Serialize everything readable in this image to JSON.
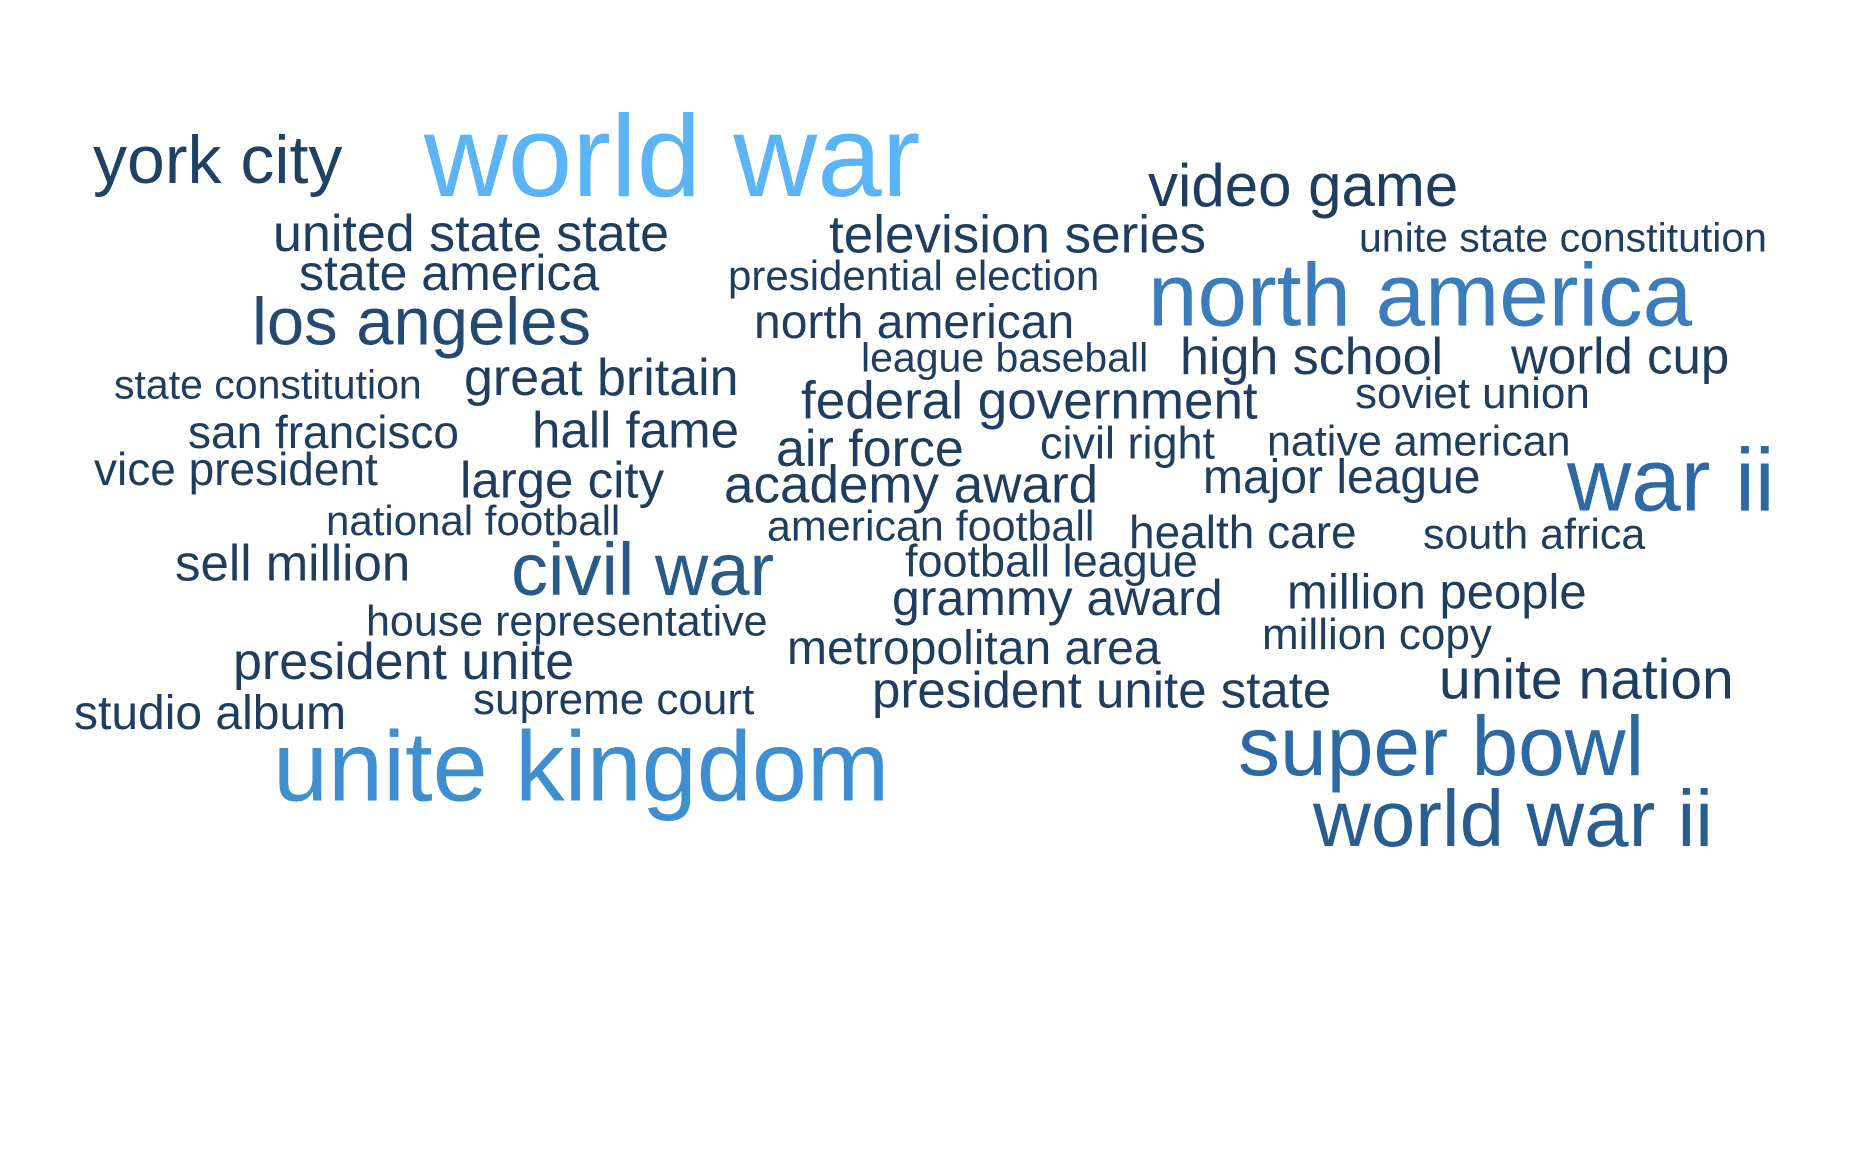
{
  "chart_data": {
    "type": "wordcloud",
    "words": [
      {
        "text": "world war",
        "weight": 100,
        "color": "#5ab4f5"
      },
      {
        "text": "unite kingdom",
        "weight": 85,
        "color": "#3f8fd0"
      },
      {
        "text": "north america",
        "weight": 77,
        "color": "#3a7dba"
      },
      {
        "text": "war ii",
        "weight": 77,
        "color": "#2d6aa3"
      },
      {
        "text": "super bowl",
        "weight": 72,
        "color": "#2d6aa3"
      },
      {
        "text": "world war ii",
        "weight": 69,
        "color": "#285d8f"
      },
      {
        "text": "civil war",
        "weight": 64,
        "color": "#285a8a"
      },
      {
        "text": "york city",
        "weight": 59,
        "color": "#1f4166"
      },
      {
        "text": "los angeles",
        "weight": 58,
        "color": "#234a73"
      },
      {
        "text": "video game",
        "weight": 52,
        "color": "#1e3d5f"
      },
      {
        "text": "unite nation",
        "weight": 49,
        "color": "#1e3d5f"
      },
      {
        "text": "television series",
        "weight": 46,
        "color": "#1e3d5f"
      },
      {
        "text": "federal government",
        "weight": 46,
        "color": "#1e3d5f"
      },
      {
        "text": "academy award",
        "weight": 46,
        "color": "#1e3d5f"
      },
      {
        "text": "united state state",
        "weight": 45,
        "color": "#1e3d5f"
      },
      {
        "text": "high school",
        "weight": 45,
        "color": "#1e3d5f"
      },
      {
        "text": "president unite",
        "weight": 45,
        "color": "#1e3d5f"
      },
      {
        "text": "great britain",
        "weight": 45,
        "color": "#1e3d5f"
      },
      {
        "text": "air force",
        "weight": 45,
        "color": "#1e3d5f"
      },
      {
        "text": "world cup",
        "weight": 44,
        "color": "#1e3d5f"
      },
      {
        "text": "president unite state",
        "weight": 44,
        "color": "#1e3d5f"
      },
      {
        "text": "large city",
        "weight": 44,
        "color": "#1e3d5f"
      },
      {
        "text": "sell million",
        "weight": 44,
        "color": "#1e3d5f"
      },
      {
        "text": "hall fame",
        "weight": 44,
        "color": "#1e3d5f"
      },
      {
        "text": "state america",
        "weight": 43,
        "color": "#1e3d5f"
      },
      {
        "text": "grammy award",
        "weight": 43,
        "color": "#1e3d5f"
      },
      {
        "text": "million people",
        "weight": 42,
        "color": "#1e3d5f"
      },
      {
        "text": "north american",
        "weight": 41,
        "color": "#1e3d5f"
      },
      {
        "text": "studio album",
        "weight": 41,
        "color": "#1e3d5f"
      },
      {
        "text": "metropolitan area",
        "weight": 41,
        "color": "#1e3d5f"
      },
      {
        "text": "major league",
        "weight": 41,
        "color": "#1e3d5f"
      },
      {
        "text": "san francisco",
        "weight": 40,
        "color": "#1e3d5f"
      },
      {
        "text": "vice president",
        "weight": 40,
        "color": "#1e3d5f"
      },
      {
        "text": "health care",
        "weight": 40,
        "color": "#1e3d5f"
      },
      {
        "text": "civil right",
        "weight": 39,
        "color": "#1e3d5f"
      },
      {
        "text": "football league",
        "weight": 39,
        "color": "#1e3d5f"
      },
      {
        "text": "soviet union",
        "weight": 38,
        "color": "#1e3d5f"
      },
      {
        "text": "supreme court",
        "weight": 38,
        "color": "#1e3d5f"
      },
      {
        "text": "million copy",
        "weight": 38,
        "color": "#1e3d5f"
      },
      {
        "text": "native american",
        "weight": 37,
        "color": "#1e3d5f"
      },
      {
        "text": "south africa",
        "weight": 37,
        "color": "#1e3d5f"
      },
      {
        "text": "american football",
        "weight": 37,
        "color": "#1e3d5f"
      },
      {
        "text": "house representative",
        "weight": 37,
        "color": "#1e3d5f"
      },
      {
        "text": "presidential election",
        "weight": 36,
        "color": "#1e3d5f"
      },
      {
        "text": "national football",
        "weight": 36,
        "color": "#1e3d5f"
      },
      {
        "text": "league baseball",
        "weight": 35,
        "color": "#1e3d5f"
      },
      {
        "text": "state constitution",
        "weight": 35,
        "color": "#1e3d5f"
      },
      {
        "text": "unite state constitution",
        "weight": 35,
        "color": "#1e3d5f"
      }
    ]
  }
}
